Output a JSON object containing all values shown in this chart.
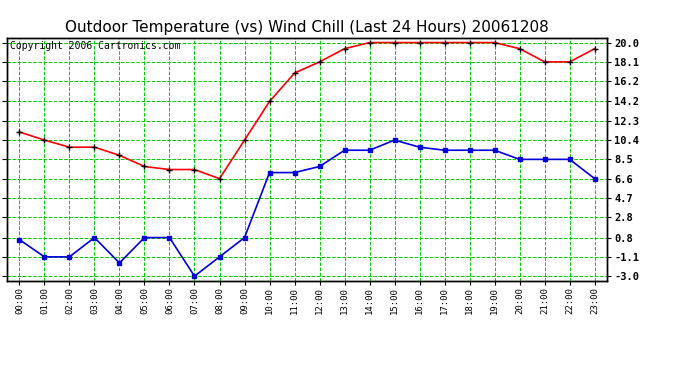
{
  "title": "Outdoor Temperature (vs) Wind Chill (Last 24 Hours) 20061208",
  "copyright": "Copyright 2006 Cartronics.com",
  "x_labels": [
    "00:00",
    "01:00",
    "02:00",
    "03:00",
    "04:00",
    "05:00",
    "06:00",
    "07:00",
    "08:00",
    "09:00",
    "10:00",
    "11:00",
    "12:00",
    "13:00",
    "14:00",
    "15:00",
    "16:00",
    "17:00",
    "18:00",
    "19:00",
    "20:00",
    "21:00",
    "22:00",
    "23:00"
  ],
  "red_data": [
    11.2,
    10.4,
    9.7,
    9.7,
    8.9,
    7.8,
    7.5,
    7.5,
    6.6,
    10.4,
    14.2,
    17.0,
    18.1,
    19.4,
    20.0,
    20.0,
    20.0,
    20.0,
    20.0,
    20.0,
    19.4,
    18.1,
    18.1,
    19.4
  ],
  "blue_data": [
    0.6,
    -1.1,
    -1.1,
    0.8,
    -1.7,
    0.8,
    0.8,
    -3.0,
    -1.1,
    0.8,
    7.2,
    7.2,
    7.8,
    9.4,
    9.4,
    10.4,
    9.7,
    9.4,
    9.4,
    9.4,
    8.5,
    8.5,
    8.5,
    6.6
  ],
  "yticks": [
    -3.0,
    -1.1,
    0.8,
    2.8,
    4.7,
    6.6,
    8.5,
    10.4,
    12.3,
    14.2,
    16.2,
    18.1,
    20.0
  ],
  "ylim": [
    -3.5,
    20.5
  ],
  "bg_color": "#ffffff",
  "grid_color": "#00cc00",
  "red_color": "#ff0000",
  "blue_color": "#0000dd",
  "title_fontsize": 11,
  "copyright_fontsize": 7,
  "tick_fontsize": 7.5,
  "xtick_fontsize": 6.5
}
